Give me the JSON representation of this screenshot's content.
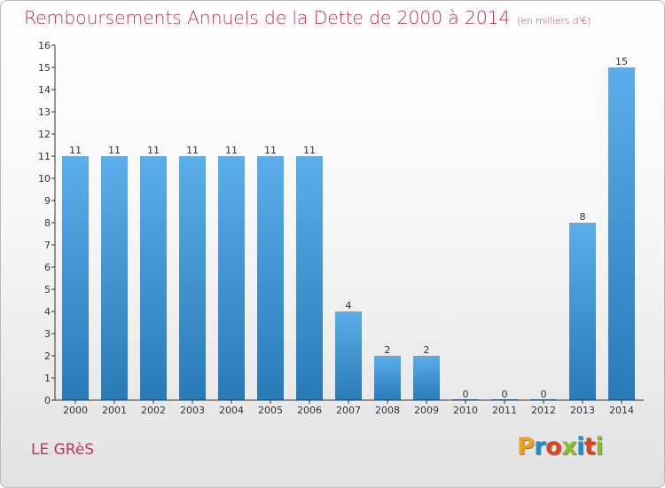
{
  "chart_data": {
    "type": "bar",
    "title": "Remboursements Annuels de la Dette de 2000 à 2014",
    "unit_note": "(en milliers d'€)",
    "categories": [
      "2000",
      "2001",
      "2002",
      "2003",
      "2004",
      "2005",
      "2006",
      "2007",
      "2008",
      "2009",
      "2010",
      "2011",
      "2012",
      "2013",
      "2014"
    ],
    "values": [
      11,
      11,
      11,
      11,
      11,
      11,
      11,
      4,
      2,
      2,
      0,
      0,
      0,
      8,
      15
    ],
    "ylim": [
      0,
      16
    ],
    "yticks": [
      0,
      1,
      2,
      3,
      4,
      5,
      6,
      7,
      8,
      9,
      10,
      11,
      12,
      13,
      14,
      15,
      16
    ],
    "grid": false,
    "bar_color_top": "#5aaeea",
    "bar_color_bottom": "#2a7ab8"
  },
  "footer": {
    "commune": "LE GRèS",
    "brand": [
      "P",
      "r",
      "o",
      "x",
      "i",
      "t",
      "i"
    ],
    "brand_colors": [
      "#f0a11a",
      "#1c8fd0",
      "#e2421b",
      "#8cbf26",
      "#1c8fd0",
      "#e2421b",
      "#8cbf26"
    ]
  }
}
